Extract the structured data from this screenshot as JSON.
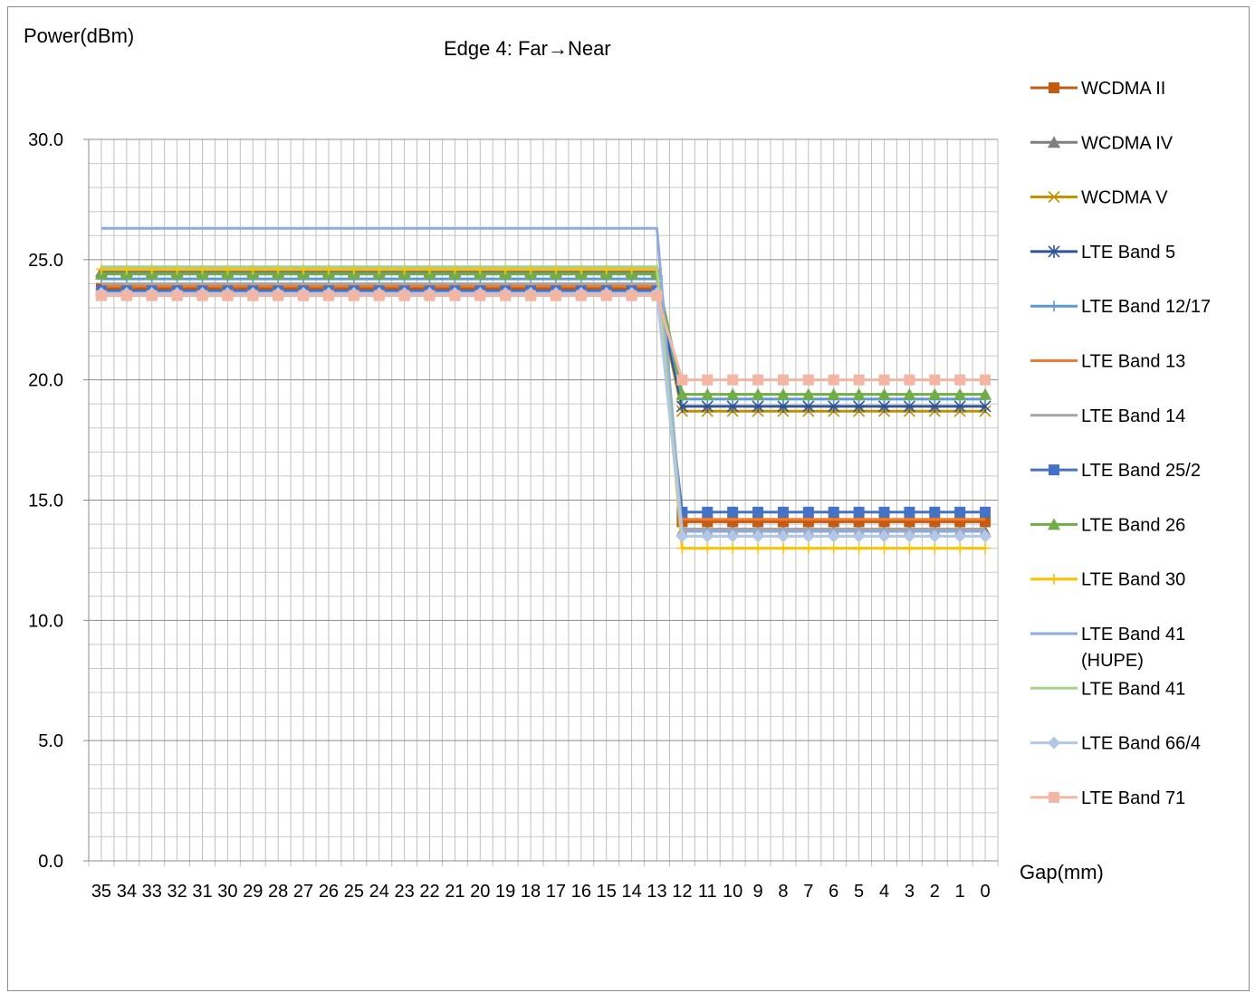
{
  "chart_data": {
    "type": "line",
    "title": "Edge 4: Far→Near",
    "ylabel": "Power(dBm)",
    "xlabel": "Gap(mm)",
    "ylim": [
      0,
      30
    ],
    "yticks": [
      "0.0",
      "5.0",
      "10.0",
      "15.0",
      "20.0",
      "25.0",
      "30.0"
    ],
    "grid": true,
    "legend_position": "right",
    "categories": [
      "35",
      "34",
      "33",
      "32",
      "31",
      "30",
      "29",
      "28",
      "27",
      "26",
      "25",
      "24",
      "23",
      "22",
      "21",
      "20",
      "19",
      "18",
      "17",
      "16",
      "15",
      "14",
      "13",
      "12",
      "11",
      "10",
      "9",
      "8",
      "7",
      "6",
      "5",
      "4",
      "3",
      "2",
      "1",
      "0"
    ],
    "series": [
      {
        "name": "WCDMA II",
        "color": "#c55a11",
        "marker": "square",
        "far": 23.8,
        "near": 14.1
      },
      {
        "name": "WCDMA IV",
        "color": "#7f7f7f",
        "marker": "triangle",
        "far": 24.5,
        "near": 13.7
      },
      {
        "name": "WCDMA V",
        "color": "#bf9000",
        "marker": "x",
        "far": 23.6,
        "near": 18.7
      },
      {
        "name": "LTE Band 5",
        "color": "#2f5597",
        "marker": "star",
        "far": 23.7,
        "near": 18.9
      },
      {
        "name": "LTE Band 12/17",
        "color": "#5b9bd5",
        "marker": "plus",
        "far": 24.2,
        "near": 19.2
      },
      {
        "name": "LTE Band 13",
        "color": "#ed7d31",
        "marker": "none",
        "far": 23.9,
        "near": 14.2
      },
      {
        "name": "LTE Band 14",
        "color": "#a5a5a5",
        "marker": "none",
        "far": 24.0,
        "near": 13.8
      },
      {
        "name": "LTE Band 25/2",
        "color": "#4472c4",
        "marker": "square",
        "far": 23.7,
        "near": 14.5
      },
      {
        "name": "LTE Band 26",
        "color": "#70ad47",
        "marker": "triangle",
        "far": 24.4,
        "near": 19.4
      },
      {
        "name": "LTE Band 30",
        "color": "#ffc000",
        "marker": "plus",
        "far": 24.6,
        "near": 13.0
      },
      {
        "name": "LTE Band 41 (HUPE)",
        "color": "#8faadc",
        "marker": "none",
        "far": 26.3,
        "near": 13.7
      },
      {
        "name": "LTE Band 41",
        "color": "#a9d18e",
        "marker": "none",
        "far": 24.7,
        "near": 13.5
      },
      {
        "name": "LTE Band 66/4",
        "color": "#b4c7e7",
        "marker": "diamond",
        "far": 23.6,
        "near": 13.5
      },
      {
        "name": "LTE Band 71",
        "color": "#f4b6a4",
        "marker": "square",
        "far": 23.5,
        "near": 20.0
      }
    ],
    "legend_lines": [
      [
        "WCDMA II"
      ],
      [
        "WCDMA IV"
      ],
      [
        "WCDMA V"
      ],
      [
        "LTE Band 5"
      ],
      [
        "LTE Band 12/17"
      ],
      [
        "LTE Band 13"
      ],
      [
        "LTE Band 14"
      ],
      [
        "LTE Band 25/2"
      ],
      [
        "LTE Band 26"
      ],
      [
        "LTE Band 30"
      ],
      [
        "LTE Band 41",
        "(HUPE)"
      ],
      [
        "LTE Band 41"
      ],
      [
        "LTE Band 66/4"
      ],
      [
        "LTE Band 71"
      ]
    ]
  }
}
